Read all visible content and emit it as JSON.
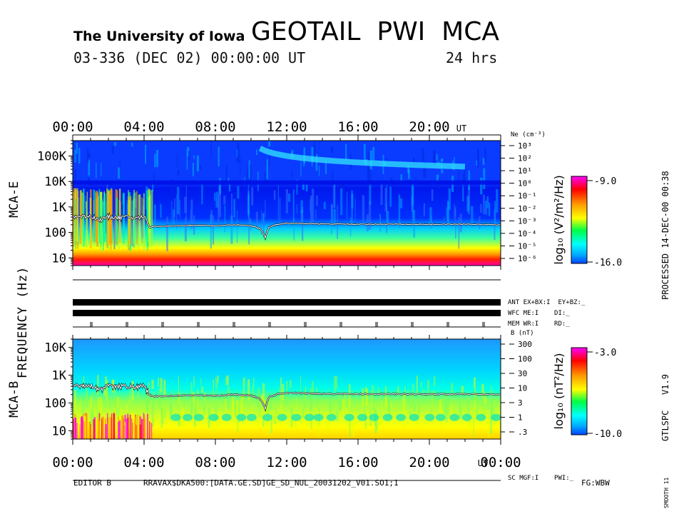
{
  "header": {
    "institution": "The University of Iowa",
    "title": "GEOTAIL  PWI  MCA",
    "date_line": "03-336 (DEC 02) 00:00:00 UT",
    "duration": "24 hrs"
  },
  "side_labels": {
    "frequency": "FREQUENCY (Hz)",
    "mca_e": "MCA-E",
    "mca_b": "MCA-B",
    "processed": "PROCESSED 14-DEC-00  00:38",
    "version": "GTLSPC   V1.9",
    "smooth": "SMOOTH 11"
  },
  "time_axis": {
    "labels": [
      "00:00",
      "04:00",
      "08:00",
      "12:00",
      "16:00",
      "20:00"
    ],
    "bottom_labels": [
      "00:00",
      "04:00",
      "08:00",
      "12:00",
      "16:00",
      "20:00",
      "00:00"
    ],
    "unit": "UT"
  },
  "status_rows": {
    "ant": "ANT EX+BX:I  EY+BZ:_",
    "wfc": "WFC ME:I    DI:_",
    "mem": "MEM WR:I    RD:_",
    "sc": "SC MGF:I    PWI:_"
  },
  "footer": {
    "editor": "EDITOR B",
    "path": "RRAVAX$DKA500:[DATA.GE.SD]GE_SD_NUL_20031202_V01.SO1;1",
    "fg": "FG:WBW"
  },
  "colors": {
    "scale": [
      "#ff00ff",
      "#ff0000",
      "#ff9900",
      "#ffff00",
      "#00ff44",
      "#00ffff",
      "#00aaff",
      "#0044ff"
    ]
  },
  "chart_data": [
    {
      "type": "heatmap",
      "name": "MCA-E",
      "title": "MCA-E",
      "xlabel": "UT",
      "ylabel": "Frequency (Hz)",
      "xlim": [
        0,
        24
      ],
      "ylim_hz": [
        5,
        400000
      ],
      "yticks": [
        {
          "label": "100K",
          "value": 100000
        },
        {
          "label": "10K",
          "value": 10000
        },
        {
          "label": "1K",
          "value": 1000
        },
        {
          "label": "100",
          "value": 100
        },
        {
          "label": "10",
          "value": 10
        }
      ],
      "right_axis_title": "Ne (cm⁻³)",
      "right_axis_labels": [
        "10³",
        "10²",
        "10¹",
        "10⁰",
        "10⁻¹",
        "10⁻²",
        "10⁻³",
        "10⁻⁴",
        "10⁻⁵",
        "10⁻⁶"
      ],
      "colorbar": {
        "label": "log₁₀ (V²/m²/Hz)",
        "max": "-9.0",
        "min": "-16.0",
        "range": [
          -16.0,
          -9.0
        ]
      },
      "overlay_trace_hz": {
        "t": [
          0,
          1,
          1.5,
          2,
          2.5,
          3,
          3.5,
          4,
          4.3,
          5,
          6,
          7,
          8,
          9,
          10,
          10.5,
          10.8,
          11,
          11.5,
          12,
          14,
          16,
          18,
          20,
          22,
          24
        ],
        "f": [
          420,
          440,
          300,
          420,
          380,
          410,
          360,
          420,
          170,
          175,
          185,
          190,
          180,
          200,
          185,
          140,
          60,
          160,
          210,
          230,
          215,
          210,
          210,
          205,
          210,
          200
        ]
      }
    },
    {
      "type": "heatmap",
      "name": "MCA-B",
      "title": "MCA-B",
      "xlabel": "UT",
      "ylabel": "Frequency (Hz)",
      "xlim": [
        0,
        24
      ],
      "ylim_hz": [
        5,
        20000
      ],
      "yticks": [
        {
          "label": "10K",
          "value": 10000
        },
        {
          "label": "1K",
          "value": 1000
        },
        {
          "label": "100",
          "value": 100
        },
        {
          "label": "10",
          "value": 10
        }
      ],
      "right_axis_title": "B (nT)",
      "right_axis_labels": [
        "300",
        "100",
        "30",
        "10",
        "3",
        "1",
        ".3"
      ],
      "colorbar": {
        "label": "log₁₀ (nT²/Hz)",
        "max": "-3.0",
        "min": "-10.0",
        "range": [
          -10.0,
          -3.0
        ]
      },
      "overlay_trace_hz": {
        "t": [
          0,
          1,
          1.5,
          2,
          2.5,
          3,
          3.5,
          4,
          4.3,
          5,
          6,
          7,
          8,
          9,
          10,
          10.5,
          10.8,
          11,
          11.5,
          12,
          14,
          16,
          18,
          20,
          22,
          24
        ],
        "f": [
          420,
          440,
          300,
          420,
          380,
          410,
          360,
          420,
          170,
          175,
          185,
          190,
          180,
          200,
          185,
          140,
          60,
          160,
          210,
          230,
          215,
          210,
          210,
          205,
          210,
          200
        ]
      }
    }
  ]
}
